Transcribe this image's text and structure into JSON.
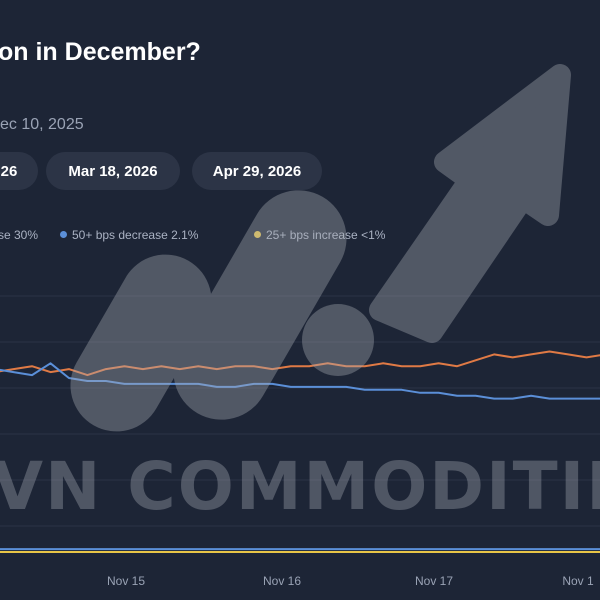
{
  "header": {
    "title": "on in December?",
    "subtitle": "ec 10, 2025"
  },
  "date_chips": [
    {
      "label": "26"
    },
    {
      "label": "Mar 18, 2026"
    },
    {
      "label": "Apr 29, 2026"
    }
  ],
  "legend": [
    {
      "label": "se 30%",
      "color": "#e07a45"
    },
    {
      "label": "50+ bps decrease 2.1%",
      "color": "#5b8fd8"
    },
    {
      "label": "25+ bps increase <1%",
      "color": "#e8c547"
    }
  ],
  "watermark": {
    "text": "VN COMMODITIES",
    "logo": "bar-chart-arrow-logo"
  },
  "chart_data": {
    "type": "line",
    "x_ticks": [
      "Nov 15",
      "Nov 16",
      "Nov 17",
      "Nov 1"
    ],
    "ylim": [
      0,
      100
    ],
    "series": [
      {
        "name": "se 30%",
        "color": "#e07a45",
        "values": [
          62,
          63,
          64,
          62,
          63,
          61,
          63,
          64,
          63,
          64,
          63,
          64,
          63,
          64,
          64,
          63,
          64,
          64,
          65,
          64,
          64,
          65,
          64,
          64,
          65,
          64,
          66,
          68,
          67,
          68,
          69,
          68,
          67,
          68
        ]
      },
      {
        "name": "50+ bps decrease 2.1%",
        "color": "#5b8fd8",
        "values": [
          63,
          62,
          61,
          65,
          60,
          59,
          59,
          58,
          58,
          58,
          58,
          58,
          57,
          57,
          58,
          58,
          57,
          57,
          57,
          57,
          56,
          56,
          56,
          55,
          55,
          54,
          54,
          53,
          53,
          54,
          53,
          53,
          53,
          53
        ]
      },
      {
        "name": "25+ bps increase <1%",
        "color": "#e8c547",
        "values": [
          1,
          1,
          1,
          1,
          1,
          1,
          1,
          1,
          1,
          1,
          1,
          1,
          1,
          1,
          1,
          1,
          1,
          1,
          1,
          1,
          1,
          1,
          1,
          1,
          1,
          1,
          1,
          1,
          1,
          1,
          1,
          1,
          1,
          1
        ]
      },
      {
        "name": "",
        "color": "#5b8fd8",
        "values": [
          2,
          2,
          2,
          2,
          2,
          2,
          2,
          2,
          2,
          2,
          2,
          2,
          2,
          2,
          2,
          2,
          2,
          2,
          2,
          2,
          2,
          2,
          2,
          2,
          2,
          2,
          2,
          2,
          2,
          2,
          2,
          2,
          2,
          2
        ]
      }
    ]
  }
}
